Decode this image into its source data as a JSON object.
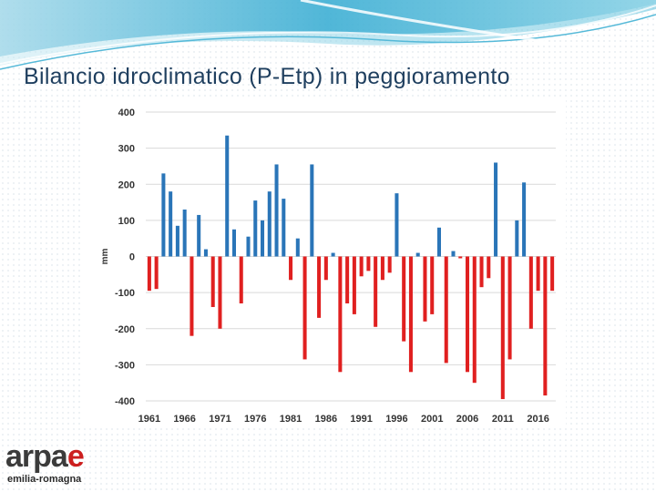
{
  "slide": {
    "title": "Bilancio idroclimatico (P-Etp) in peggioramento"
  },
  "colors": {
    "positive": "#2a75b8",
    "negative": "#e02020",
    "title": "#1f3f5f",
    "logo_dark": "#3b3b3b",
    "logo_accent": "#cc1f1f",
    "logo_green": "#2e8b3a"
  },
  "logo": {
    "word_prefix": "arpa",
    "word_suffix": "e",
    "subtitle": "emilia-romagna"
  },
  "chart_data": {
    "type": "bar",
    "title": "",
    "xlabel": "",
    "ylabel": "mm",
    "ylim": [
      -400,
      400
    ],
    "yticks": [
      400,
      300,
      200,
      100,
      0,
      -100,
      -200,
      -300,
      -400
    ],
    "xtick_labels": [
      "1961",
      "1966",
      "1971",
      "1976",
      "1981",
      "1986",
      "1991",
      "1996",
      "2001",
      "2006",
      "2011",
      "2016"
    ],
    "grid": true,
    "categories": [
      1961,
      1962,
      1963,
      1964,
      1965,
      1966,
      1967,
      1968,
      1969,
      1970,
      1971,
      1972,
      1973,
      1974,
      1975,
      1976,
      1977,
      1978,
      1979,
      1980,
      1981,
      1982,
      1983,
      1984,
      1985,
      1986,
      1987,
      1988,
      1989,
      1990,
      1991,
      1992,
      1993,
      1994,
      1995,
      1996,
      1997,
      1998,
      1999,
      2000,
      2001,
      2002,
      2003,
      2004,
      2005,
      2006,
      2007,
      2008,
      2009,
      2010,
      2011,
      2012,
      2013,
      2014,
      2015,
      2016,
      2017,
      2018
    ],
    "values": [
      -95,
      -90,
      230,
      180,
      85,
      130,
      -220,
      115,
      20,
      -140,
      -200,
      335,
      75,
      -130,
      55,
      155,
      100,
      180,
      255,
      160,
      -65,
      50,
      -285,
      255,
      -170,
      -65,
      10,
      -320,
      -130,
      -160,
      -55,
      -40,
      -195,
      -65,
      -45,
      175,
      -235,
      -320,
      10,
      -180,
      -160,
      80,
      -295,
      15,
      -5,
      -320,
      -350,
      -85,
      -60,
      260,
      -395,
      -285,
      100,
      205,
      -200,
      -95,
      -385,
      -95
    ]
  }
}
